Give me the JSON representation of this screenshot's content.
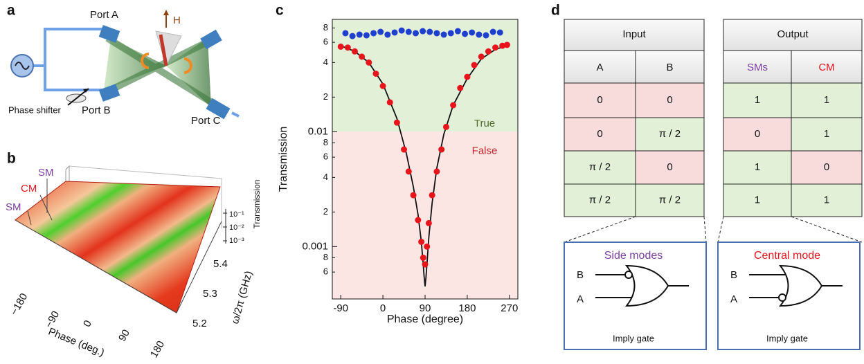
{
  "panel_labels": [
    "a",
    "b",
    "c",
    "d"
  ],
  "setup": {
    "ports": [
      "Port A",
      "Port B",
      "Port C"
    ],
    "phase_shifter": "Phase shifter",
    "field": "H"
  },
  "surface_plot": {
    "mode_labels": [
      "SM",
      "CM",
      "SM"
    ],
    "x_label": "Phase (deg.)",
    "x_ticks": [
      "−180",
      "−90",
      "0",
      "90",
      "180"
    ],
    "y_label": "ω/2π (GHz)",
    "y_ticks": [
      "5.2",
      "5.3",
      "5.4"
    ],
    "z_label": "Transmission",
    "z_ticks": [
      "10⁻¹",
      "10⁻²",
      "10⁻³"
    ]
  },
  "chart_data": {
    "type": "scatter",
    "x_label": "Phase (degree)",
    "y_label": "Transmission",
    "log_y": true,
    "threshold": 0.01,
    "annotations": [
      "True",
      "False"
    ],
    "xlim": [
      -108,
      288
    ],
    "xticks": [
      -90,
      0,
      90,
      180,
      270
    ],
    "ylim": [
      0.00035,
      0.095
    ],
    "yticks": [
      {
        "value": 0.0006,
        "label": "6"
      },
      {
        "value": 0.0008,
        "label": "8"
      },
      0.001,
      {
        "value": 0.002,
        "label": "2"
      },
      {
        "value": 0.004,
        "label": "4"
      },
      {
        "value": 0.006,
        "label": "6"
      },
      {
        "value": 0.008,
        "label": "8"
      },
      0.01,
      {
        "value": 0.02,
        "label": "2"
      },
      {
        "value": 0.04,
        "label": "4"
      },
      {
        "value": 0.06,
        "label": "6"
      },
      {
        "value": 0.08,
        "label": "8"
      }
    ],
    "series": [
      {
        "color": "#1f3fcf",
        "marker": "dot",
        "x": [
          -80,
          -65,
          -50,
          -35,
          -20,
          -5,
          10,
          25,
          40,
          55,
          70,
          85,
          100,
          115,
          130,
          145,
          160,
          175,
          190,
          205,
          220,
          235,
          250
        ],
        "values": [
          0.072,
          0.068,
          0.07,
          0.069,
          0.072,
          0.074,
          0.07,
          0.073,
          0.076,
          0.074,
          0.072,
          0.075,
          0.074,
          0.072,
          0.07,
          0.072,
          0.075,
          0.071,
          0.073,
          0.07,
          0.069,
          0.074,
          0.073
        ]
      },
      {
        "color": "#e8141c",
        "marker": "dot",
        "x": [
          -90,
          -75,
          -60,
          -45,
          -30,
          -15,
          0,
          15,
          30,
          45,
          55,
          65,
          75,
          82,
          86,
          90,
          94,
          98,
          105,
          115,
          125,
          135,
          150,
          165,
          180,
          195,
          210,
          225,
          240,
          255,
          265
        ],
        "values": [
          0.055,
          0.054,
          0.05,
          0.045,
          0.04,
          0.032,
          0.025,
          0.018,
          0.012,
          0.007,
          0.0045,
          0.0028,
          0.0017,
          0.0011,
          0.0008,
          0.0007,
          0.001,
          0.0016,
          0.0028,
          0.0045,
          0.007,
          0.011,
          0.017,
          0.024,
          0.03,
          0.038,
          0.045,
          0.05,
          0.054,
          0.056,
          0.057
        ]
      },
      {
        "color": "#111111",
        "marker": "line",
        "x": [
          -90,
          -60,
          -30,
          0,
          30,
          50,
          65,
          75,
          82,
          86,
          88,
          90,
          92,
          94,
          98,
          105,
          115,
          130,
          150,
          180,
          210,
          240,
          270
        ],
        "values": [
          0.056,
          0.05,
          0.04,
          0.026,
          0.013,
          0.0065,
          0.0033,
          0.0019,
          0.0011,
          0.0007,
          0.00055,
          0.00045,
          0.00055,
          0.0007,
          0.0012,
          0.0024,
          0.0048,
          0.0095,
          0.017,
          0.029,
          0.043,
          0.052,
          0.057
        ]
      }
    ]
  },
  "truth_table": {
    "headers": [
      "Input",
      "Output"
    ],
    "columns": [
      "A",
      "B",
      "SMs",
      "CM"
    ],
    "rows": [
      [
        "0",
        "0",
        "1",
        "1"
      ],
      [
        "0",
        "π / 2",
        "0",
        "1"
      ],
      [
        "π / 2",
        "0",
        "1",
        "0"
      ],
      [
        "π / 2",
        "π / 2",
        "1",
        "1"
      ]
    ]
  },
  "gates": [
    {
      "title": "Side modes",
      "inputs": [
        "B",
        "A"
      ],
      "caption": "Imply gate"
    },
    {
      "title": "Central mode",
      "inputs": [
        "B",
        "A"
      ],
      "caption": "Imply gate"
    }
  ]
}
